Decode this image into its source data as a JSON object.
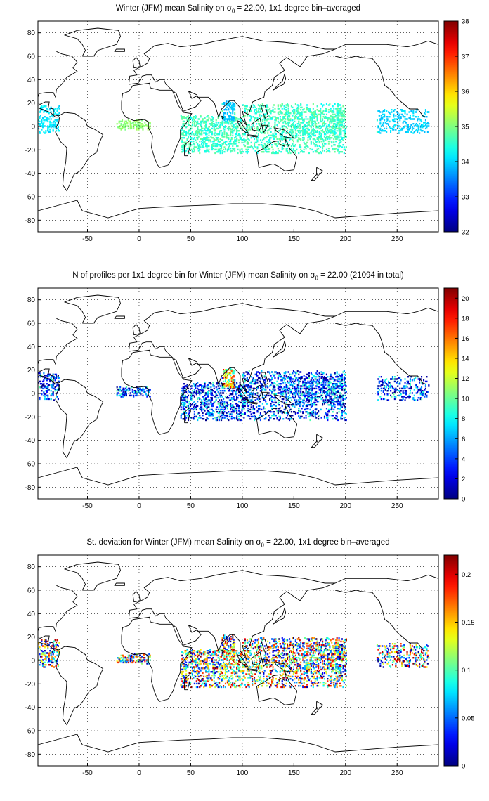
{
  "panels": [
    {
      "title_parts": [
        "Winter (JFM) mean Salinity on ",
        "σ",
        "θ",
        " = 22.00, 1x1 degree bin–averaged"
      ],
      "colorbar_ticks": [
        "32",
        "33",
        "34",
        "35",
        "36",
        "37",
        "38"
      ],
      "colorbar_range": [
        32,
        38
      ],
      "field": "salinity"
    },
    {
      "title_parts": [
        "N of profiles per 1x1 degree bin for Winter (JFM) mean Salinity on ",
        "σ",
        "θ",
        " = 22.00 (21094 in total)"
      ],
      "colorbar_ticks": [
        "0",
        "2",
        "4",
        "6",
        "8",
        "10",
        "12",
        "14",
        "16",
        "18",
        "20"
      ],
      "colorbar_range": [
        0,
        21
      ],
      "field": "count"
    },
    {
      "title_parts": [
        "St. deviation for Winter (JFM) mean Salinity on ",
        "σ",
        "θ",
        " = 22.00, 1x1 degree bin–averaged"
      ],
      "colorbar_ticks": [
        "0",
        "0.05",
        "0.1",
        "0.15",
        "0.2"
      ],
      "colorbar_range": [
        0,
        0.22
      ],
      "field": "stdev"
    }
  ],
  "axes": {
    "xticks": [
      "-50",
      "0",
      "50",
      "100",
      "150",
      "200",
      "250"
    ],
    "xtick_values": [
      -50,
      0,
      50,
      100,
      150,
      200,
      250
    ],
    "yticks": [
      "80",
      "60",
      "40",
      "20",
      "0",
      "-20",
      "-40",
      "-60",
      "-80"
    ],
    "ytick_values": [
      80,
      60,
      40,
      20,
      0,
      -20,
      -40,
      -60,
      -80
    ],
    "xlim": [
      -98,
      290
    ],
    "ylim": [
      -90,
      90
    ],
    "grid": "dotted"
  },
  "colormap": "jet"
}
